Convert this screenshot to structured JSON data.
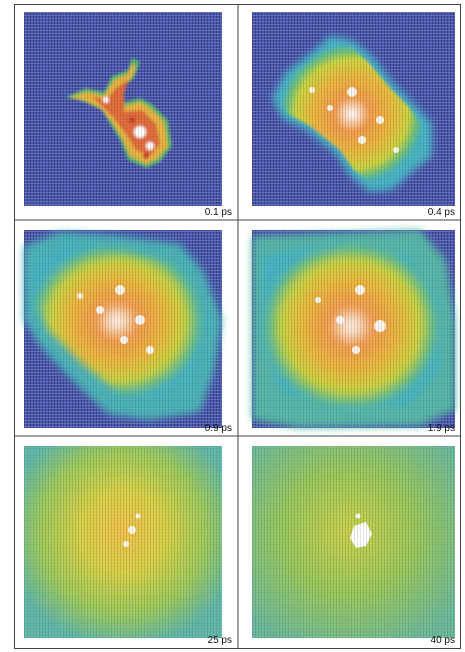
{
  "panels": [
    {
      "label": "0.1 ps"
    },
    {
      "label": "0.4 ps"
    },
    {
      "label": "0.9 ps"
    },
    {
      "label": "1.9 ps"
    },
    {
      "label": "25 ps"
    },
    {
      "label": "40 ps"
    }
  ]
}
